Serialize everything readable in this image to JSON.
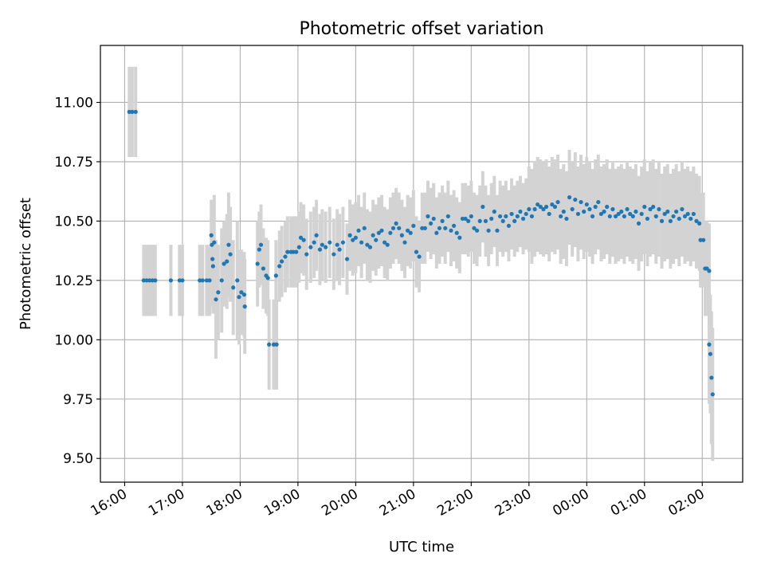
{
  "chart_data": {
    "type": "scatter",
    "title": "Photometric offset variation",
    "xlabel": "UTC time",
    "ylabel": "Photometric offset",
    "x_unit": "hours since 16:00 UTC",
    "xlim": [
      -0.42,
      10.7
    ],
    "ylim": [
      9.4,
      11.24
    ],
    "grid": true,
    "marker_color": "#1f77b4",
    "errorbar_color": "#d3d3d3",
    "x_ticks": [
      {
        "value": 0,
        "label": "16:00"
      },
      {
        "value": 1,
        "label": "17:00"
      },
      {
        "value": 2,
        "label": "18:00"
      },
      {
        "value": 3,
        "label": "19:00"
      },
      {
        "value": 4,
        "label": "20:00"
      },
      {
        "value": 5,
        "label": "21:00"
      },
      {
        "value": 6,
        "label": "22:00"
      },
      {
        "value": 7,
        "label": "23:00"
      },
      {
        "value": 8,
        "label": "00:00"
      },
      {
        "value": 9,
        "label": "01:00"
      },
      {
        "value": 10,
        "label": "02:00"
      }
    ],
    "y_ticks": [
      {
        "value": 9.5,
        "label": "9.50"
      },
      {
        "value": 9.75,
        "label": "9.75"
      },
      {
        "value": 10.0,
        "label": "10.00"
      },
      {
        "value": 10.25,
        "label": "10.25"
      },
      {
        "value": 10.5,
        "label": "10.50"
      },
      {
        "value": 10.75,
        "label": "10.75"
      },
      {
        "value": 11.0,
        "label": "11.00"
      }
    ],
    "points": [
      [
        0.08,
        10.96,
        0.19
      ],
      [
        0.13,
        10.96,
        0.19
      ],
      [
        0.19,
        10.96,
        0.19
      ],
      [
        0.33,
        10.25,
        0.15
      ],
      [
        0.38,
        10.25,
        0.15
      ],
      [
        0.43,
        10.25,
        0.15
      ],
      [
        0.48,
        10.25,
        0.15
      ],
      [
        0.53,
        10.25,
        0.15
      ],
      [
        0.8,
        10.25,
        0.15
      ],
      [
        0.95,
        10.25,
        0.15
      ],
      [
        1.0,
        10.25,
        0.15
      ],
      [
        1.3,
        10.25,
        0.15
      ],
      [
        1.35,
        10.25,
        0.15
      ],
      [
        1.42,
        10.25,
        0.15
      ],
      [
        1.47,
        10.25,
        0.15
      ],
      [
        1.5,
        10.44,
        0.15
      ],
      [
        1.51,
        10.4,
        0.17
      ],
      [
        1.52,
        10.34,
        0.2
      ],
      [
        1.53,
        10.31,
        0.2
      ],
      [
        1.55,
        10.41,
        0.2
      ],
      [
        1.58,
        10.17,
        0.25
      ],
      [
        1.62,
        10.2,
        0.2
      ],
      [
        1.68,
        10.25,
        0.22
      ],
      [
        1.72,
        10.32,
        0.18
      ],
      [
        1.77,
        10.33,
        0.2
      ],
      [
        1.8,
        10.4,
        0.22
      ],
      [
        1.83,
        10.36,
        0.2
      ],
      [
        1.88,
        10.22,
        0.2
      ],
      [
        1.95,
        10.25,
        0.25
      ],
      [
        1.98,
        10.18,
        0.2
      ],
      [
        2.02,
        10.2,
        0.18
      ],
      [
        2.07,
        10.19,
        0.18
      ],
      [
        2.08,
        10.14,
        0.2
      ],
      [
        2.3,
        10.32,
        0.18
      ],
      [
        2.33,
        10.38,
        0.16
      ],
      [
        2.36,
        10.4,
        0.17
      ],
      [
        2.4,
        10.3,
        0.17
      ],
      [
        2.45,
        10.27,
        0.16
      ],
      [
        2.48,
        10.26,
        0.16
      ],
      [
        2.5,
        9.98,
        0.19
      ],
      [
        2.58,
        9.98,
        0.19
      ],
      [
        2.63,
        9.98,
        0.19
      ],
      [
        2.62,
        10.27,
        0.15
      ],
      [
        2.68,
        10.31,
        0.15
      ],
      [
        2.72,
        10.33,
        0.15
      ],
      [
        2.78,
        10.35,
        0.15
      ],
      [
        2.82,
        10.37,
        0.15
      ],
      [
        2.88,
        10.37,
        0.15
      ],
      [
        2.92,
        10.37,
        0.15
      ],
      [
        2.97,
        10.37,
        0.15
      ],
      [
        3.02,
        10.39,
        0.15
      ],
      [
        3.05,
        10.43,
        0.15
      ],
      [
        3.1,
        10.42,
        0.15
      ],
      [
        3.15,
        10.36,
        0.15
      ],
      [
        3.22,
        10.39,
        0.15
      ],
      [
        3.28,
        10.41,
        0.15
      ],
      [
        3.32,
        10.44,
        0.15
      ],
      [
        3.38,
        10.38,
        0.15
      ],
      [
        3.42,
        10.4,
        0.15
      ],
      [
        3.48,
        10.39,
        0.15
      ],
      [
        3.55,
        10.41,
        0.15
      ],
      [
        3.62,
        10.36,
        0.15
      ],
      [
        3.68,
        10.4,
        0.15
      ],
      [
        3.72,
        10.38,
        0.15
      ],
      [
        3.78,
        10.41,
        0.15
      ],
      [
        3.85,
        10.34,
        0.15
      ],
      [
        3.9,
        10.44,
        0.15
      ],
      [
        3.95,
        10.42,
        0.15
      ],
      [
        4.0,
        10.43,
        0.15
      ],
      [
        4.05,
        10.46,
        0.15
      ],
      [
        4.1,
        10.41,
        0.15
      ],
      [
        4.15,
        10.47,
        0.15
      ],
      [
        4.2,
        10.4,
        0.15
      ],
      [
        4.25,
        10.39,
        0.15
      ],
      [
        4.3,
        10.44,
        0.15
      ],
      [
        4.35,
        10.42,
        0.15
      ],
      [
        4.4,
        10.45,
        0.15
      ],
      [
        4.45,
        10.46,
        0.15
      ],
      [
        4.5,
        10.41,
        0.15
      ],
      [
        4.55,
        10.4,
        0.15
      ],
      [
        4.6,
        10.45,
        0.15
      ],
      [
        4.65,
        10.47,
        0.15
      ],
      [
        4.7,
        10.49,
        0.15
      ],
      [
        4.75,
        10.47,
        0.15
      ],
      [
        4.8,
        10.44,
        0.15
      ],
      [
        4.85,
        10.41,
        0.15
      ],
      [
        4.9,
        10.46,
        0.15
      ],
      [
        4.95,
        10.45,
        0.15
      ],
      [
        5.0,
        10.48,
        0.15
      ],
      [
        5.05,
        10.37,
        0.15
      ],
      [
        5.1,
        10.35,
        0.15
      ],
      [
        5.15,
        10.47,
        0.15
      ],
      [
        5.2,
        10.47,
        0.15
      ],
      [
        5.25,
        10.52,
        0.15
      ],
      [
        5.3,
        10.49,
        0.15
      ],
      [
        5.35,
        10.51,
        0.15
      ],
      [
        5.4,
        10.45,
        0.15
      ],
      [
        5.45,
        10.47,
        0.15
      ],
      [
        5.5,
        10.5,
        0.15
      ],
      [
        5.55,
        10.47,
        0.15
      ],
      [
        5.6,
        10.52,
        0.15
      ],
      [
        5.65,
        10.46,
        0.15
      ],
      [
        5.7,
        10.48,
        0.15
      ],
      [
        5.75,
        10.45,
        0.15
      ],
      [
        5.8,
        10.43,
        0.15
      ],
      [
        5.85,
        10.51,
        0.15
      ],
      [
        5.9,
        10.51,
        0.15
      ],
      [
        5.95,
        10.5,
        0.15
      ],
      [
        6.0,
        10.52,
        0.15
      ],
      [
        6.05,
        10.47,
        0.15
      ],
      [
        6.1,
        10.46,
        0.15
      ],
      [
        6.15,
        10.5,
        0.15
      ],
      [
        6.2,
        10.56,
        0.15
      ],
      [
        6.25,
        10.5,
        0.15
      ],
      [
        6.3,
        10.46,
        0.15
      ],
      [
        6.35,
        10.51,
        0.15
      ],
      [
        6.4,
        10.54,
        0.15
      ],
      [
        6.45,
        10.46,
        0.15
      ],
      [
        6.5,
        10.52,
        0.15
      ],
      [
        6.55,
        10.5,
        0.15
      ],
      [
        6.6,
        10.52,
        0.15
      ],
      [
        6.65,
        10.48,
        0.15
      ],
      [
        6.7,
        10.53,
        0.15
      ],
      [
        6.75,
        10.5,
        0.15
      ],
      [
        6.8,
        10.52,
        0.15
      ],
      [
        6.85,
        10.54,
        0.15
      ],
      [
        6.9,
        10.51,
        0.15
      ],
      [
        6.95,
        10.53,
        0.15
      ],
      [
        7.0,
        10.55,
        0.18
      ],
      [
        7.05,
        10.52,
        0.2
      ],
      [
        7.1,
        10.55,
        0.2
      ],
      [
        7.15,
        10.57,
        0.2
      ],
      [
        7.2,
        10.56,
        0.2
      ],
      [
        7.25,
        10.55,
        0.2
      ],
      [
        7.3,
        10.56,
        0.2
      ],
      [
        7.35,
        10.53,
        0.2
      ],
      [
        7.4,
        10.57,
        0.2
      ],
      [
        7.45,
        10.56,
        0.2
      ],
      [
        7.5,
        10.58,
        0.2
      ],
      [
        7.55,
        10.52,
        0.2
      ],
      [
        7.6,
        10.54,
        0.2
      ],
      [
        7.65,
        10.51,
        0.2
      ],
      [
        7.7,
        10.6,
        0.2
      ],
      [
        7.75,
        10.55,
        0.2
      ],
      [
        7.8,
        10.59,
        0.2
      ],
      [
        7.85,
        10.53,
        0.2
      ],
      [
        7.9,
        10.58,
        0.2
      ],
      [
        7.95,
        10.54,
        0.2
      ],
      [
        8.0,
        10.57,
        0.2
      ],
      [
        8.05,
        10.55,
        0.2
      ],
      [
        8.1,
        10.52,
        0.2
      ],
      [
        8.15,
        10.56,
        0.2
      ],
      [
        8.2,
        10.58,
        0.2
      ],
      [
        8.25,
        10.53,
        0.2
      ],
      [
        8.3,
        10.54,
        0.2
      ],
      [
        8.35,
        10.56,
        0.2
      ],
      [
        8.4,
        10.52,
        0.2
      ],
      [
        8.45,
        10.55,
        0.2
      ],
      [
        8.5,
        10.52,
        0.2
      ],
      [
        8.55,
        10.53,
        0.2
      ],
      [
        8.6,
        10.54,
        0.2
      ],
      [
        8.65,
        10.52,
        0.2
      ],
      [
        8.7,
        10.55,
        0.2
      ],
      [
        8.75,
        10.53,
        0.2
      ],
      [
        8.8,
        10.52,
        0.2
      ],
      [
        8.85,
        10.54,
        0.2
      ],
      [
        8.9,
        10.49,
        0.2
      ],
      [
        8.95,
        10.53,
        0.2
      ],
      [
        9.0,
        10.56,
        0.2
      ],
      [
        9.05,
        10.51,
        0.2
      ],
      [
        9.1,
        10.55,
        0.2
      ],
      [
        9.15,
        10.56,
        0.2
      ],
      [
        9.2,
        10.52,
        0.2
      ],
      [
        9.25,
        10.55,
        0.2
      ],
      [
        9.3,
        10.5,
        0.2
      ],
      [
        9.35,
        10.53,
        0.2
      ],
      [
        9.4,
        10.54,
        0.2
      ],
      [
        9.45,
        10.5,
        0.2
      ],
      [
        9.5,
        10.52,
        0.2
      ],
      [
        9.55,
        10.54,
        0.2
      ],
      [
        9.6,
        10.51,
        0.2
      ],
      [
        9.65,
        10.55,
        0.2
      ],
      [
        9.7,
        10.52,
        0.2
      ],
      [
        9.75,
        10.53,
        0.2
      ],
      [
        9.8,
        10.51,
        0.2
      ],
      [
        9.85,
        10.53,
        0.2
      ],
      [
        9.9,
        10.5,
        0.2
      ],
      [
        9.95,
        10.49,
        0.2
      ],
      [
        9.97,
        10.42,
        0.2
      ],
      [
        10.02,
        10.42,
        0.2
      ],
      [
        10.05,
        10.3,
        0.2
      ],
      [
        10.08,
        10.3,
        0.2
      ],
      [
        10.12,
        10.29,
        0.2
      ],
      [
        10.12,
        9.98,
        0.25
      ],
      [
        10.14,
        9.94,
        0.25
      ],
      [
        10.16,
        9.84,
        0.28
      ],
      [
        10.18,
        9.77,
        0.28
      ]
    ]
  }
}
